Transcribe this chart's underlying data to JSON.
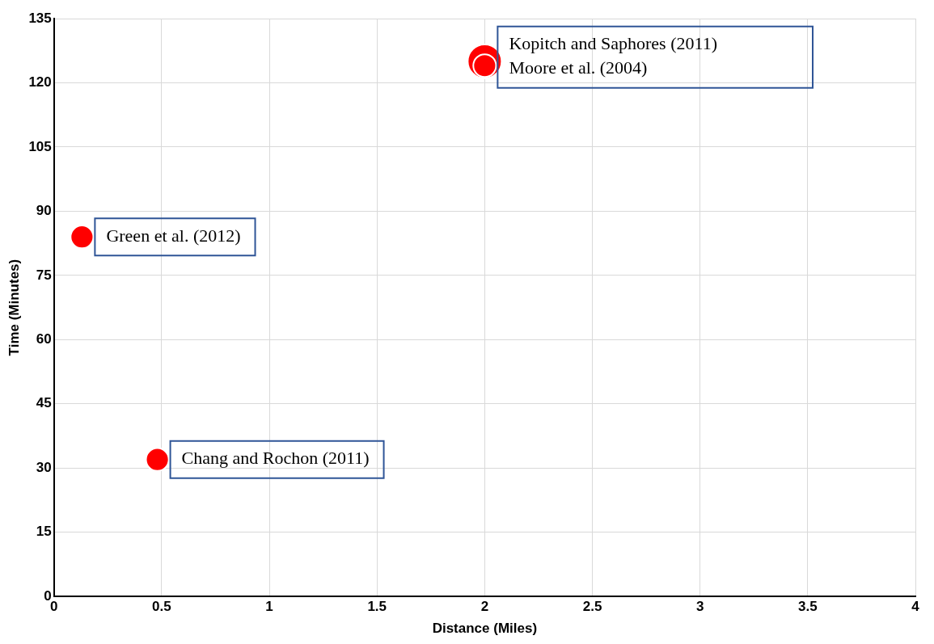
{
  "chart_data": {
    "type": "bubble",
    "xlabel": "Distance (Miles)",
    "ylabel": "Time (Minutes)",
    "x": [
      0.13,
      0.48,
      2.0,
      2.0
    ],
    "values": [
      84,
      32,
      125,
      124
    ],
    "sizes": [
      0.45,
      0.45,
      1,
      0.45
    ],
    "color": "#ff0000",
    "xlim": [
      0,
      4
    ],
    "xticks": [
      0,
      0.5,
      1,
      1.5,
      2,
      2.5,
      3,
      3.5,
      4
    ],
    "ylim": [
      0,
      135
    ],
    "yticks": [
      0,
      15,
      30,
      45,
      60,
      75,
      90,
      105,
      120,
      135
    ],
    "grid": true,
    "annotations": [
      {
        "text": "Green et al. (2012)",
        "x": 0.13,
        "y": 84
      },
      {
        "text": "Chang and Rochon (2011)",
        "x": 0.48,
        "y": 32
      },
      {
        "text": "Kopitch and Saphores (2011)",
        "x": 2.0,
        "y": 125
      },
      {
        "text": "Moore et al. (2004)",
        "x": 2.0,
        "y": 124
      }
    ]
  }
}
